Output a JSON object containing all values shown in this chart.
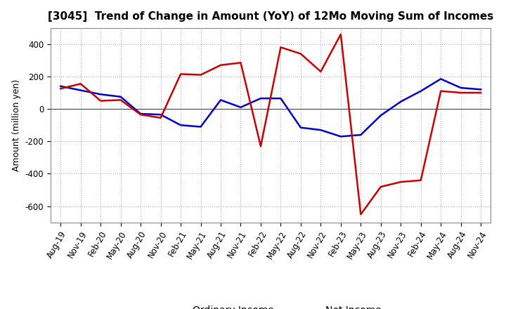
{
  "title": "[3045]  Trend of Change in Amount (YoY) of 12Mo Moving Sum of Incomes",
  "ylabel": "Amount (million yen)",
  "background_color": "#ffffff",
  "grid_color": "#b0b0b0",
  "x_labels": [
    "Aug-19",
    "Nov-19",
    "Feb-20",
    "May-20",
    "Aug-20",
    "Nov-20",
    "Feb-21",
    "May-21",
    "Aug-21",
    "Nov-21",
    "Feb-22",
    "May-22",
    "Aug-22",
    "Nov-22",
    "Feb-23",
    "May-23",
    "Aug-23",
    "Nov-23",
    "Feb-24",
    "May-24",
    "Aug-24",
    "Nov-24"
  ],
  "ordinary_income": [
    140,
    115,
    90,
    75,
    -30,
    -35,
    -100,
    -110,
    55,
    10,
    65,
    65,
    -115,
    -130,
    -170,
    -160,
    -40,
    45,
    110,
    185,
    130,
    120
  ],
  "net_income": [
    125,
    155,
    50,
    55,
    -35,
    -55,
    215,
    210,
    270,
    285,
    -230,
    380,
    340,
    230,
    460,
    -650,
    -480,
    -450,
    -440,
    110,
    100,
    100
  ],
  "ordinary_color": "#0000cc",
  "net_color": "#cc0000",
  "ylim": [
    -700,
    500
  ],
  "yticks": [
    -600,
    -400,
    -200,
    0,
    200,
    400
  ],
  "line_width": 1.8,
  "title_fontsize": 11,
  "label_fontsize": 9,
  "tick_fontsize": 8.5,
  "legend_fontsize": 10
}
